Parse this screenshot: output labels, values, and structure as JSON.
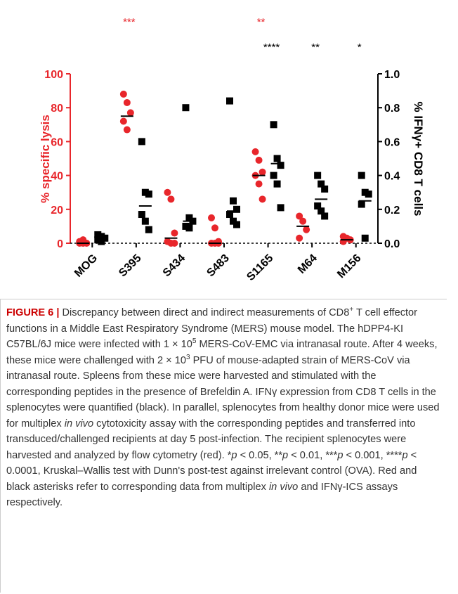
{
  "chart_data": {
    "type": "dot",
    "categories": [
      "MOG",
      "S395",
      "S434",
      "S483",
      "S1165",
      "M64",
      "M156"
    ],
    "ylabel": "% specific lysis",
    "y2label": "% IFNγ+ CD8 T cells",
    "ylim": [
      0,
      100
    ],
    "yticks": [
      0,
      20,
      40,
      60,
      80,
      100
    ],
    "y2lim": [
      0,
      1.0
    ],
    "y2ticks": [
      {
        "value": 0,
        "label": "0.0"
      },
      0.2,
      0.4,
      0.6,
      0.8,
      {
        "value": 1.0,
        "label": "1.0"
      }
    ],
    "series": [
      {
        "color": "#e8262b",
        "marker": "circle",
        "values": [
          [
            0,
            0,
            0,
            1,
            2
          ],
          [
            88,
            83,
            77,
            72,
            67
          ],
          [
            30,
            26,
            6,
            1,
            0,
            0
          ],
          [
            15,
            9,
            1,
            0,
            0,
            0
          ],
          [
            54,
            49,
            42,
            40,
            35,
            26
          ],
          [
            16,
            13,
            8,
            3
          ],
          [
            4,
            3,
            2,
            1
          ]
        ],
        "centers": [
          0,
          75,
          3,
          0,
          40,
          10,
          2
        ],
        "significance": [
          null,
          "***",
          null,
          null,
          "**",
          null,
          null
        ]
      },
      {
        "color": "#000000",
        "marker": "square",
        "axis": "y2",
        "values": [
          [
            0.05,
            0.04,
            0.03,
            0.02,
            0.01
          ],
          [
            0.6,
            0.3,
            0.29,
            0.17,
            0.13,
            0.08
          ],
          [
            0.8,
            0.15,
            0.13,
            0.1,
            0.09
          ],
          [
            0.84,
            0.25,
            0.2,
            0.17,
            0.13,
            0.11
          ],
          [
            0.7,
            0.5,
            0.46,
            0.4,
            0.35,
            0.21
          ],
          [
            0.4,
            0.35,
            0.32,
            0.22,
            0.19,
            0.16
          ],
          [
            0.4,
            0.3,
            0.29,
            0.23,
            0.03
          ]
        ],
        "centers": [
          0.03,
          0.22,
          0.13,
          0.19,
          0.47,
          0.26,
          0.25
        ],
        "significance": [
          null,
          null,
          null,
          null,
          "****",
          "**",
          "*"
        ]
      }
    ]
  },
  "caption": [
    {
      "text": "FIGURE 6 |",
      "style": "b"
    },
    {
      "text": " Discrepancy between direct and indirect measurements of CD8"
    },
    {
      "text": "+",
      "style": "sup"
    },
    {
      "text": " T cell effector functions in a Middle East Respiratory Syndrome (MERS) mouse model. The hDPP4-KI C57BL/6J mice were infected with 1 × 10"
    },
    {
      "text": "5",
      "style": "sup"
    },
    {
      "text": " MERS-CoV-EMC via intranasal route. After 4 weeks, these mice were challenged with 2 × 10"
    },
    {
      "text": "3",
      "style": "sup"
    },
    {
      "text": " PFU of mouse-adapted strain of MERS-CoV via intranasal route. Spleens from these mice were harvested and stimulated with the corresponding peptides in the presence of Brefeldin A. IFNγ expression from CD8 T cells in the splenocytes were quantified (black). In parallel, splenocytes from healthy donor mice were used for multiplex "
    },
    {
      "text": "in vivo",
      "style": "i"
    },
    {
      "text": " cytotoxicity assay with the corresponding peptides and transferred into transduced/challenged recipients at day 5 post-infection. The recipient splenocytes were harvested and analyzed by flow cytometry (red). *"
    },
    {
      "text": "p",
      "style": "i"
    },
    {
      "text": " < 0.05, **"
    },
    {
      "text": "p",
      "style": "i"
    },
    {
      "text": " < 0.01, ***"
    },
    {
      "text": "p",
      "style": "i"
    },
    {
      "text": " < 0.001, ****"
    },
    {
      "text": "p",
      "style": "i"
    },
    {
      "text": " < 0.0001, Kruskal–Wallis test with Dunn's post-test against irrelevant control (OVA). Red and black asterisks refer to corresponding data from multiplex "
    },
    {
      "text": "in vivo",
      "style": "i"
    },
    {
      "text": " and IFNγ-ICS assays respectively."
    }
  ]
}
